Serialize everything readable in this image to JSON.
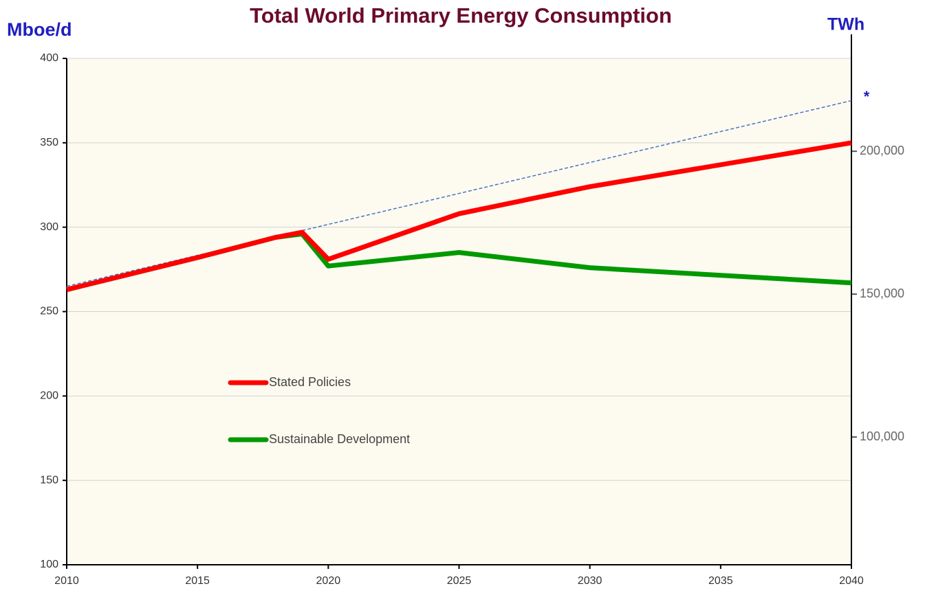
{
  "chart_data": {
    "type": "line",
    "title": "Total World Primary Energy Consumption",
    "y_axis_label": "Mboe/d",
    "y2_axis_label": "TWh",
    "annotation": "*",
    "x": [
      2010,
      2015,
      2018,
      2019,
      2020,
      2025,
      2030,
      2040
    ],
    "series": [
      {
        "name": "Stated Policies",
        "color": "#ff0000",
        "values": [
          263,
          282,
          294,
          297,
          281,
          308,
          324,
          350
        ]
      },
      {
        "name": "Sustainable Development",
        "color": "#009900",
        "values": [
          263,
          282,
          294,
          296,
          277,
          285,
          276,
          267
        ]
      }
    ],
    "trend_line": {
      "x": [
        2010,
        2040
      ],
      "values": [
        265,
        375
      ],
      "color": "#4a72c4"
    },
    "xlim": [
      2010,
      2040
    ],
    "xticks": [
      2010,
      2015,
      2020,
      2025,
      2030,
      2035,
      2040
    ],
    "ylim": [
      100,
      400
    ],
    "yticks": [
      100,
      150,
      200,
      250,
      300,
      350,
      400
    ],
    "y2lim": [
      55300,
      232500
    ],
    "y2ticks": [
      {
        "value": 100000,
        "label": "100,000"
      },
      {
        "value": 150000,
        "label": "150,000"
      },
      {
        "value": 200000,
        "label": "200,000"
      }
    ],
    "grid": true
  }
}
